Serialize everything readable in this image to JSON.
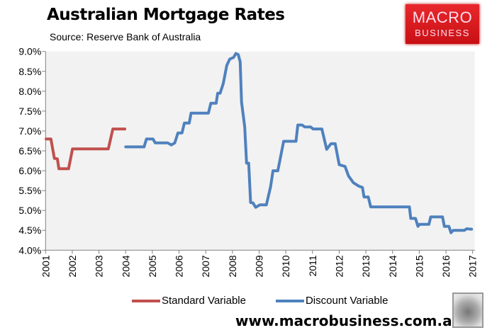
{
  "header": {
    "title": "Australian Mortgage Rates",
    "source": "Source: Reserve Bank of Australia"
  },
  "logo": {
    "line1": "MACRO",
    "line2": "BUSINESS"
  },
  "footer": {
    "website": "www.macrobusiness.com.au"
  },
  "chart_data": {
    "type": "line",
    "title": "Australian Mortgage Rates",
    "xlabel": "",
    "ylabel": "",
    "xlim": [
      2001,
      2017
    ],
    "ylim": [
      4.0,
      9.0
    ],
    "yticks": [
      "9.0%",
      "8.5%",
      "8.0%",
      "7.5%",
      "7.0%",
      "6.5%",
      "6.0%",
      "5.5%",
      "5.0%",
      "4.5%",
      "4.0%"
    ],
    "xticks": [
      "2001",
      "2002",
      "2003",
      "2004",
      "2005",
      "2006",
      "2007",
      "2008",
      "2009",
      "2010",
      "2011",
      "2012",
      "2013",
      "2014",
      "2015",
      "2016",
      "2017"
    ],
    "grid": false,
    "legend_position": "bottom",
    "colors": {
      "Standard Variable": "#c0504d",
      "Discount Variable": "#4f81bd",
      "plot_bg": "#f2f2f2"
    },
    "series": [
      {
        "name": "Standard Variable",
        "x": [
          2001.02,
          2001.2,
          2001.33,
          2001.44,
          2001.5,
          2001.86,
          2002.01,
          2003.35,
          2003.52,
          2003.97
        ],
        "y": [
          6.8,
          6.8,
          6.31,
          6.3,
          6.05,
          6.05,
          6.55,
          6.55,
          7.05,
          7.05
        ]
      },
      {
        "name": "Discount Variable",
        "x": [
          2004.0,
          2004.69,
          2004.78,
          2005.02,
          2005.11,
          2005.58,
          2005.71,
          2005.84,
          2005.96,
          2006.11,
          2006.2,
          2006.38,
          2006.45,
          2007.1,
          2007.19,
          2007.39,
          2007.45,
          2007.54,
          2007.66,
          2007.79,
          2007.9,
          2008.04,
          2008.13,
          2008.22,
          2008.29,
          2008.34,
          2008.46,
          2008.53,
          2008.61,
          2008.68,
          2008.77,
          2008.87,
          2009.03,
          2009.27,
          2009.43,
          2009.52,
          2009.7,
          2009.92,
          2010.38,
          2010.45,
          2010.61,
          2010.71,
          2010.93,
          2011.02,
          2011.35,
          2011.53,
          2011.69,
          2011.85,
          2012.0,
          2012.22,
          2012.35,
          2012.53,
          2012.74,
          2012.87,
          2012.93,
          2013.09,
          2013.18,
          2014.63,
          2014.68,
          2014.86,
          2014.95,
          2015.01,
          2015.36,
          2015.43,
          2015.87,
          2015.94,
          2016.11,
          2016.19,
          2016.27,
          2016.69,
          2016.78,
          2016.96
        ],
        "y": [
          6.6,
          6.6,
          6.8,
          6.8,
          6.7,
          6.7,
          6.65,
          6.7,
          6.95,
          6.95,
          7.2,
          7.2,
          7.45,
          7.45,
          7.7,
          7.7,
          7.95,
          7.95,
          8.2,
          8.65,
          8.81,
          8.85,
          8.95,
          8.92,
          8.74,
          7.73,
          7.1,
          6.19,
          6.19,
          5.2,
          5.19,
          5.08,
          5.14,
          5.14,
          5.6,
          6.0,
          6.0,
          6.74,
          6.74,
          7.15,
          7.15,
          7.1,
          7.1,
          7.05,
          7.05,
          6.54,
          6.68,
          6.68,
          6.15,
          6.11,
          5.87,
          5.7,
          5.61,
          5.58,
          5.34,
          5.34,
          5.09,
          5.09,
          4.8,
          4.8,
          4.6,
          4.65,
          4.65,
          4.84,
          4.84,
          4.6,
          4.6,
          4.44,
          4.5,
          4.5,
          4.54,
          4.53
        ]
      }
    ]
  }
}
